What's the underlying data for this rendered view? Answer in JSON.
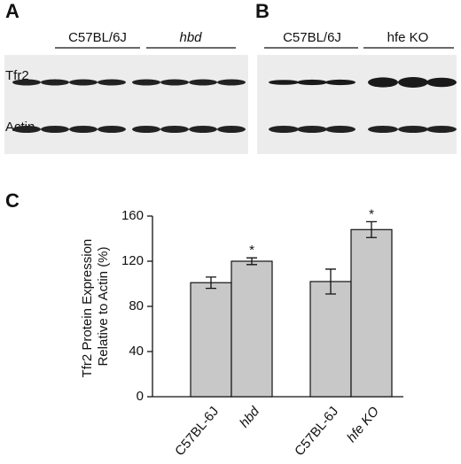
{
  "blots": [
    {
      "label": "A",
      "groups": [
        "C57BL/6J",
        "hbd"
      ],
      "rows": [
        "Tfr2",
        "Actin"
      ]
    },
    {
      "label": "B",
      "groups": [
        "C57BL/6J",
        "hfe KO"
      ]
    }
  ],
  "chart_data": {
    "type": "bar",
    "label": "C",
    "y_label": [
      "Tfr2 Protein Expression",
      "Relative to Actin (%)"
    ],
    "categories": [
      "C57BL-6J",
      "hbd",
      "C57BL-6J",
      "hfe KO"
    ],
    "values": [
      101,
      120,
      102,
      148
    ],
    "errors": [
      5,
      3,
      11,
      7
    ],
    "significance": [
      null,
      "*",
      null,
      "*"
    ],
    "color": "#c8c8c8",
    "ylim": [
      0,
      160
    ],
    "yticks": [
      0,
      40,
      80,
      120,
      160
    ]
  }
}
